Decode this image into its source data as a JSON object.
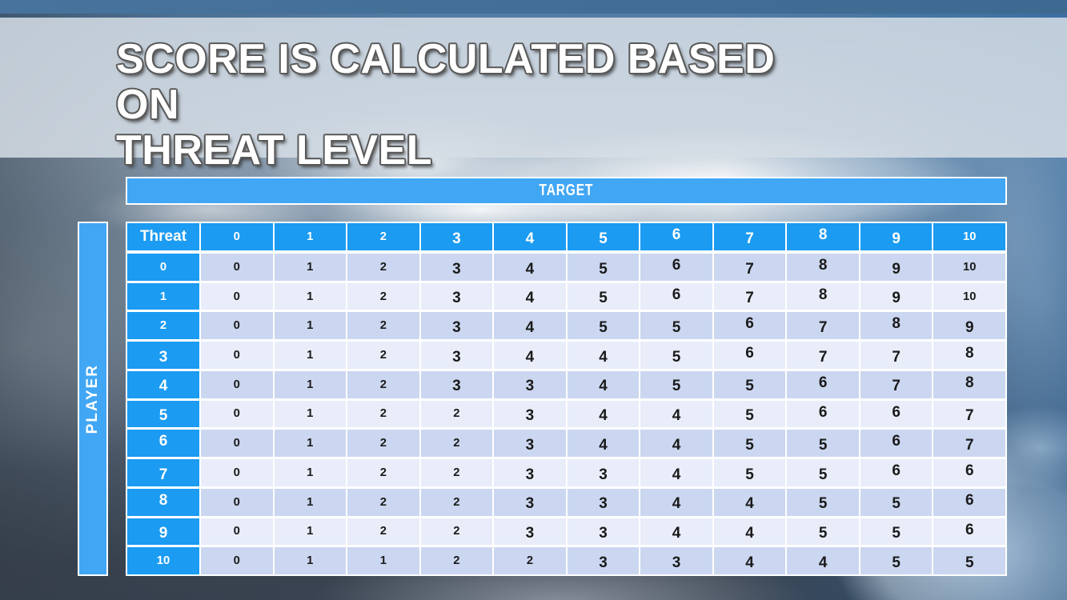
{
  "title_lines": [
    "SCORE IS CALCULATED BASED ON",
    "THREAT LEVEL"
  ],
  "chart_data": {
    "type": "table",
    "title": "SCORE IS CALCULATED BASED ON THREAT LEVEL",
    "column_group_label": "TARGET",
    "row_group_label": "PLAYER",
    "corner_label": "Threat",
    "columns": [
      "0",
      "1",
      "2",
      "3",
      "4",
      "5",
      "6",
      "7",
      "8",
      "9",
      "10"
    ],
    "rows": [
      {
        "header": "0",
        "values": [
          0,
          1,
          2,
          3,
          4,
          5,
          6,
          7,
          8,
          9,
          10
        ]
      },
      {
        "header": "1",
        "values": [
          0,
          1,
          2,
          3,
          4,
          5,
          6,
          7,
          8,
          9,
          10
        ]
      },
      {
        "header": "2",
        "values": [
          0,
          1,
          2,
          3,
          4,
          5,
          5,
          6,
          7,
          8,
          9
        ]
      },
      {
        "header": "3",
        "values": [
          0,
          1,
          2,
          3,
          4,
          4,
          5,
          6,
          7,
          7,
          8
        ]
      },
      {
        "header": "4",
        "values": [
          0,
          1,
          2,
          3,
          3,
          4,
          5,
          5,
          6,
          7,
          8
        ]
      },
      {
        "header": "5",
        "values": [
          0,
          1,
          2,
          2,
          3,
          4,
          4,
          5,
          6,
          6,
          7
        ]
      },
      {
        "header": "6",
        "values": [
          0,
          1,
          2,
          2,
          3,
          4,
          4,
          5,
          5,
          6,
          7
        ]
      },
      {
        "header": "7",
        "values": [
          0,
          1,
          2,
          2,
          3,
          3,
          4,
          5,
          5,
          6,
          6
        ]
      },
      {
        "header": "8",
        "values": [
          0,
          1,
          2,
          2,
          3,
          3,
          4,
          4,
          5,
          5,
          6
        ]
      },
      {
        "header": "9",
        "values": [
          0,
          1,
          2,
          2,
          3,
          3,
          4,
          4,
          5,
          5,
          6
        ]
      },
      {
        "header": "10",
        "values": [
          0,
          1,
          1,
          2,
          2,
          3,
          3,
          4,
          4,
          5,
          5
        ]
      }
    ]
  },
  "colors": {
    "bar_blue": "#41a6f4",
    "header_blue": "#1b9bf2",
    "row_band_dark": "#cbd7f0",
    "row_band_light": "#e8edf9",
    "top_strip": "#3e6a92",
    "title_text": "#ffffff",
    "cell_text": "#1a1a1a"
  }
}
